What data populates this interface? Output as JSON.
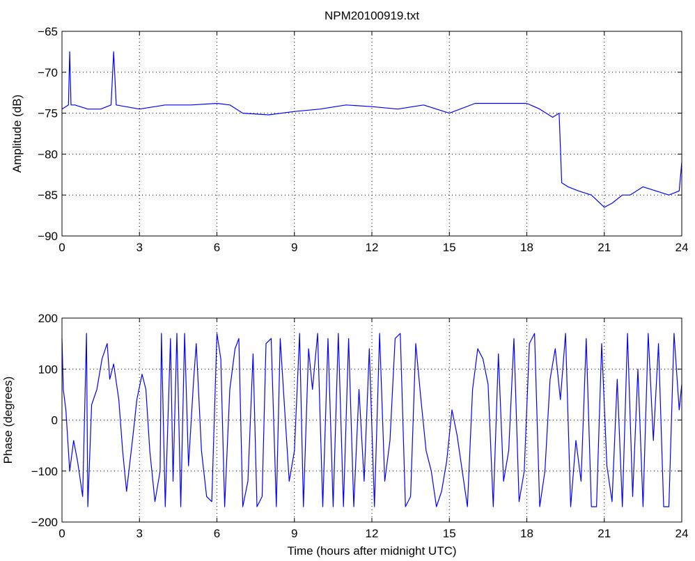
{
  "chart_data": [
    {
      "type": "line",
      "title": "NPM20100919.txt",
      "xlabel": "",
      "ylabel": "Amplitude (dB)",
      "xlim": [
        0,
        24
      ],
      "ylim": [
        -90,
        -65
      ],
      "xticks": [
        0,
        3,
        6,
        9,
        12,
        15,
        18,
        21,
        24
      ],
      "yticks": [
        -65,
        -70,
        -75,
        -80,
        -85,
        -90
      ],
      "grid": true,
      "line_color": "#0000ff",
      "x": [
        0.0,
        0.25,
        0.3,
        0.35,
        0.5,
        1.0,
        1.5,
        1.9,
        2.0,
        2.1,
        3.0,
        4.0,
        5.0,
        6.0,
        6.5,
        7.0,
        8.0,
        9.0,
        10.0,
        11.0,
        12.0,
        13.0,
        14.0,
        15.0,
        16.0,
        17.0,
        18.0,
        18.5,
        19.0,
        19.25,
        19.35,
        19.6,
        20.0,
        20.5,
        21.0,
        21.3,
        21.7,
        22.0,
        22.5,
        23.0,
        23.5,
        23.9,
        24.0
      ],
      "y": [
        -74.5,
        -74.0,
        -67.5,
        -74.0,
        -74.0,
        -74.5,
        -74.5,
        -74.0,
        -67.5,
        -74.0,
        -74.5,
        -74.0,
        -74.0,
        -73.8,
        -74.0,
        -75.0,
        -75.2,
        -74.8,
        -74.5,
        -74.0,
        -74.2,
        -74.5,
        -74.0,
        -75.0,
        -73.8,
        -73.8,
        -73.8,
        -74.5,
        -75.5,
        -75.0,
        -83.5,
        -84.0,
        -84.5,
        -85.0,
        -86.5,
        -86.0,
        -85.0,
        -85.0,
        -84.0,
        -84.5,
        -85.0,
        -84.5,
        -81.0
      ]
    },
    {
      "type": "line",
      "title": "",
      "xlabel": "Time (hours after midnight UTC)",
      "ylabel": "Phase (degrees)",
      "xlim": [
        0,
        24
      ],
      "ylim": [
        -200,
        200
      ],
      "xticks": [
        0,
        3,
        6,
        9,
        12,
        15,
        18,
        21,
        24
      ],
      "yticks": [
        200,
        100,
        0,
        -100,
        -200
      ],
      "grid": true,
      "line_color": "#0000ff",
      "x": [
        0.0,
        0.05,
        0.15,
        0.3,
        0.45,
        0.6,
        0.8,
        0.95,
        1.0,
        1.15,
        1.35,
        1.55,
        1.75,
        1.85,
        2.0,
        2.2,
        2.35,
        2.5,
        2.75,
        2.9,
        3.1,
        3.25,
        3.4,
        3.6,
        3.8,
        3.85,
        4.0,
        4.2,
        4.3,
        4.45,
        4.6,
        4.75,
        4.9,
        5.1,
        5.2,
        5.4,
        5.6,
        5.8,
        6.0,
        6.15,
        6.3,
        6.5,
        6.7,
        6.85,
        7.0,
        7.2,
        7.4,
        7.55,
        7.75,
        7.9,
        8.1,
        8.3,
        8.45,
        8.6,
        8.8,
        9.0,
        9.2,
        9.35,
        9.55,
        9.7,
        9.9,
        10.1,
        10.3,
        10.5,
        10.7,
        10.9,
        11.1,
        11.3,
        11.5,
        11.7,
        11.9,
        12.1,
        12.3,
        12.5,
        12.7,
        12.9,
        13.1,
        13.3,
        13.5,
        13.7,
        13.9,
        14.1,
        14.3,
        14.5,
        14.7,
        14.9,
        15.1,
        15.3,
        15.5,
        15.7,
        15.9,
        16.1,
        16.3,
        16.5,
        16.7,
        16.9,
        17.1,
        17.3,
        17.5,
        17.7,
        17.9,
        18.1,
        18.3,
        18.5,
        18.7,
        18.9,
        19.1,
        19.3,
        19.5,
        19.7,
        19.9,
        20.1,
        20.3,
        20.5,
        20.7,
        20.9,
        21.1,
        21.3,
        21.5,
        21.7,
        21.9,
        22.1,
        22.3,
        22.5,
        22.7,
        22.9,
        23.1,
        23.3,
        23.5,
        23.7,
        23.9,
        24.0
      ],
      "y": [
        160,
        60,
        20,
        -100,
        -40,
        -80,
        -150,
        170,
        -170,
        30,
        60,
        120,
        150,
        80,
        110,
        40,
        -60,
        -140,
        -30,
        40,
        90,
        60,
        -60,
        -160,
        -100,
        170,
        -170,
        160,
        -120,
        170,
        -170,
        170,
        -90,
        80,
        150,
        -60,
        -150,
        -160,
        170,
        120,
        -170,
        60,
        140,
        160,
        -170,
        -120,
        130,
        -170,
        -150,
        150,
        160,
        -170,
        160,
        40,
        -120,
        -60,
        170,
        -170,
        140,
        60,
        170,
        -170,
        160,
        -170,
        170,
        -170,
        160,
        -170,
        60,
        -120,
        140,
        -170,
        170,
        -120,
        -40,
        160,
        170,
        -170,
        -150,
        150,
        40,
        -60,
        -100,
        -170,
        -140,
        -80,
        20,
        -30,
        -100,
        -170,
        60,
        140,
        120,
        70,
        -170,
        130,
        -120,
        -60,
        160,
        -160,
        -100,
        150,
        170,
        -170,
        -100,
        80,
        140,
        40,
        170,
        -170,
        -40,
        -120,
        160,
        -170,
        -170,
        150,
        -90,
        -160,
        80,
        -170,
        170,
        -150,
        100,
        -170,
        170,
        -40,
        150,
        -170,
        -170,
        170,
        20,
        70
      ]
    }
  ]
}
